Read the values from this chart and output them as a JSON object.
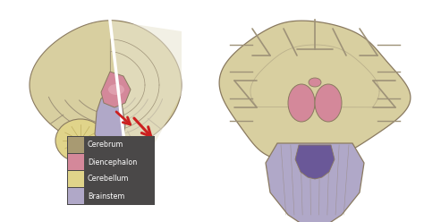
{
  "background_color": "#ffffff",
  "legend_items": [
    {
      "label": "Cerebrum",
      "color": "#a89a72"
    },
    {
      "label": "Diencephalon",
      "color": "#d4889a"
    },
    {
      "label": "Cerebellum",
      "color": "#e0d48a"
    },
    {
      "label": "Brainstem",
      "color": "#b0a8c8"
    }
  ],
  "legend_bg": "#4a4848",
  "legend_text_color": "#ffffff",
  "cerebrum_color": "#d8cfa0",
  "cerebrum_sulci": "#9e9278",
  "diencephalon_color": "#d4889a",
  "diencephalon_light": "#e8b0bc",
  "cerebellum_color": "#e0d48a",
  "cerebellum_sulci": "#c0b060",
  "brainstem_color": "#b0a8c8",
  "brainstem_dark": "#6a5898",
  "outline_color": "#8a7a60",
  "red_color": "#cc2020",
  "cut_color": "#e8e0c8",
  "white_matter": "#e8e4d0"
}
